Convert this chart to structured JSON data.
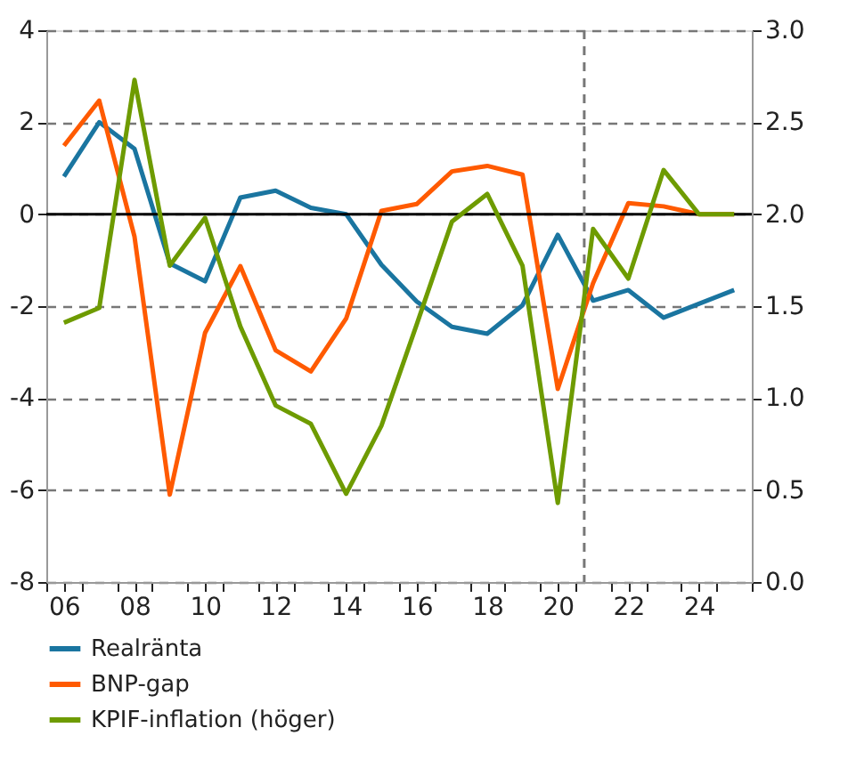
{
  "chart_data": {
    "type": "line",
    "x": [
      2006,
      2007,
      2008,
      2009,
      2010,
      2011,
      2012,
      2013,
      2014,
      2015,
      2016,
      2017,
      2018,
      2019,
      2020,
      2021,
      2022,
      2023,
      2024,
      2025
    ],
    "series": [
      {
        "name": "Realränta",
        "color": "#1a75a0",
        "values": [
          0.82,
          2.0,
          1.42,
          -1.07,
          -1.46,
          0.36,
          0.51,
          0.14,
          0.0,
          -1.1,
          -1.9,
          -2.45,
          -2.6,
          -1.98,
          -0.45,
          -1.88,
          -1.65,
          -2.25,
          -1.95,
          -1.65
        ]
      },
      {
        "name": "BNP-gap",
        "color": "#ff5a00",
        "values": [
          1.49,
          2.47,
          -0.49,
          -6.1,
          -2.58,
          -1.13,
          -2.96,
          -3.42,
          -2.27,
          0.07,
          0.22,
          0.93,
          1.05,
          0.86,
          -3.8,
          -1.5,
          0.24,
          0.17,
          0.0,
          0.0
        ]
      },
      {
        "name": "KPIF-inflation (höger)",
        "color": "#6e9b00",
        "axis": "y2",
        "values": [
          1.41,
          1.49,
          2.73,
          1.72,
          1.98,
          1.39,
          0.96,
          0.86,
          0.48,
          0.85,
          1.4,
          1.96,
          2.11,
          1.72,
          0.43,
          1.92,
          1.65,
          2.24,
          2.0,
          2.0
        ]
      }
    ],
    "xlim": [
      2005.5,
      2025.5
    ],
    "xticks": [
      {
        "value": 2005.5,
        "label": null
      },
      {
        "value": 2006,
        "label": "06"
      },
      {
        "value": 2006.5,
        "label": null
      },
      {
        "value": 2007.5,
        "label": null
      },
      {
        "value": 2008,
        "label": "08"
      },
      {
        "value": 2008.5,
        "label": null
      },
      {
        "value": 2009.5,
        "label": null
      },
      {
        "value": 2010,
        "label": "10"
      },
      {
        "value": 2010.5,
        "label": null
      },
      {
        "value": 2011.5,
        "label": null
      },
      {
        "value": 2012,
        "label": "12"
      },
      {
        "value": 2012.5,
        "label": null
      },
      {
        "value": 2013.5,
        "label": null
      },
      {
        "value": 2014,
        "label": "14"
      },
      {
        "value": 2014.5,
        "label": null
      },
      {
        "value": 2015.5,
        "label": null
      },
      {
        "value": 2016,
        "label": "16"
      },
      {
        "value": 2016.5,
        "label": null
      },
      {
        "value": 2017.5,
        "label": null
      },
      {
        "value": 2018,
        "label": "18"
      },
      {
        "value": 2018.5,
        "label": null
      },
      {
        "value": 2019.5,
        "label": null
      },
      {
        "value": 2020,
        "label": "20"
      },
      {
        "value": 2020.5,
        "label": null
      },
      {
        "value": 2021.5,
        "label": null
      },
      {
        "value": 2022,
        "label": "22"
      },
      {
        "value": 2022.5,
        "label": null
      },
      {
        "value": 2023.5,
        "label": null
      },
      {
        "value": 2024,
        "label": "24"
      },
      {
        "value": 2024.5,
        "label": null
      },
      {
        "value": 2025.5,
        "label": null
      }
    ],
    "ylim": [
      -8,
      4
    ],
    "yticks": [
      -8,
      -6,
      -4,
      -2,
      0,
      2,
      4
    ],
    "y2lim": [
      0,
      3
    ],
    "y2ticks": [
      {
        "value": 0,
        "label": "0.0"
      },
      {
        "value": 0.5,
        "label": "0.5"
      },
      {
        "value": 1,
        "label": "1.0"
      },
      {
        "value": 1.5,
        "label": "1.5"
      },
      {
        "value": 2,
        "label": "2.0"
      },
      {
        "value": 2.5,
        "label": "2.5"
      },
      {
        "value": 3,
        "label": "3.0"
      }
    ],
    "ref_lines": [
      {
        "axis": "y",
        "value": 0,
        "color": "#000000",
        "line_style": "solid"
      },
      {
        "axis": "x",
        "value": 2020.75,
        "color": "#777777",
        "line_style": "dashed"
      }
    ],
    "grid": "y",
    "legend": "bottom left",
    "marker": "none",
    "line_style": "solid"
  }
}
